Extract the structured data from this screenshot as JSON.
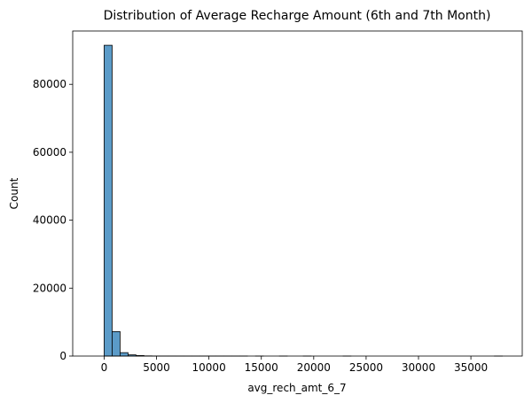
{
  "chart_data": {
    "type": "bar",
    "title": "Distribution of Average Recharge Amount (6th and 7th Month)",
    "xlabel": "avg_rech_amt_6_7",
    "ylabel": "Count",
    "xlim": [
      -3000,
      39900
    ],
    "ylim": [
      0,
      95700
    ],
    "x_ticks": [
      0,
      5000,
      10000,
      15000,
      20000,
      25000,
      30000,
      35000
    ],
    "y_ticks": [
      0,
      20000,
      40000,
      60000,
      80000
    ],
    "bin_width": 760,
    "bins": [
      {
        "x0": 0,
        "count": 91500
      },
      {
        "x0": 760,
        "count": 7200
      },
      {
        "x0": 1520,
        "count": 1000
      },
      {
        "x0": 2280,
        "count": 350
      },
      {
        "x0": 3040,
        "count": 150
      },
      {
        "x0": 3800,
        "count": 50
      },
      {
        "x0": 4560,
        "count": 25
      },
      {
        "x0": 5320,
        "count": 15
      },
      {
        "x0": 6080,
        "count": 10
      },
      {
        "x0": 6840,
        "count": 6
      },
      {
        "x0": 7600,
        "count": 4
      },
      {
        "x0": 8360,
        "count": 3
      },
      {
        "x0": 9120,
        "count": 2
      },
      {
        "x0": 9880,
        "count": 2
      },
      {
        "x0": 10640,
        "count": 1
      },
      {
        "x0": 11400,
        "count": 1
      },
      {
        "x0": 12160,
        "count": 1
      },
      {
        "x0": 12920,
        "count": 1
      },
      {
        "x0": 14440,
        "count": 1
      },
      {
        "x0": 16720,
        "count": 1
      },
      {
        "x0": 19000,
        "count": 1
      },
      {
        "x0": 22800,
        "count": 1
      },
      {
        "x0": 37240,
        "count": 1
      }
    ],
    "bar_color": "#5b9bc8",
    "edge_color": "#000000",
    "grid": false,
    "legend": "none"
  }
}
